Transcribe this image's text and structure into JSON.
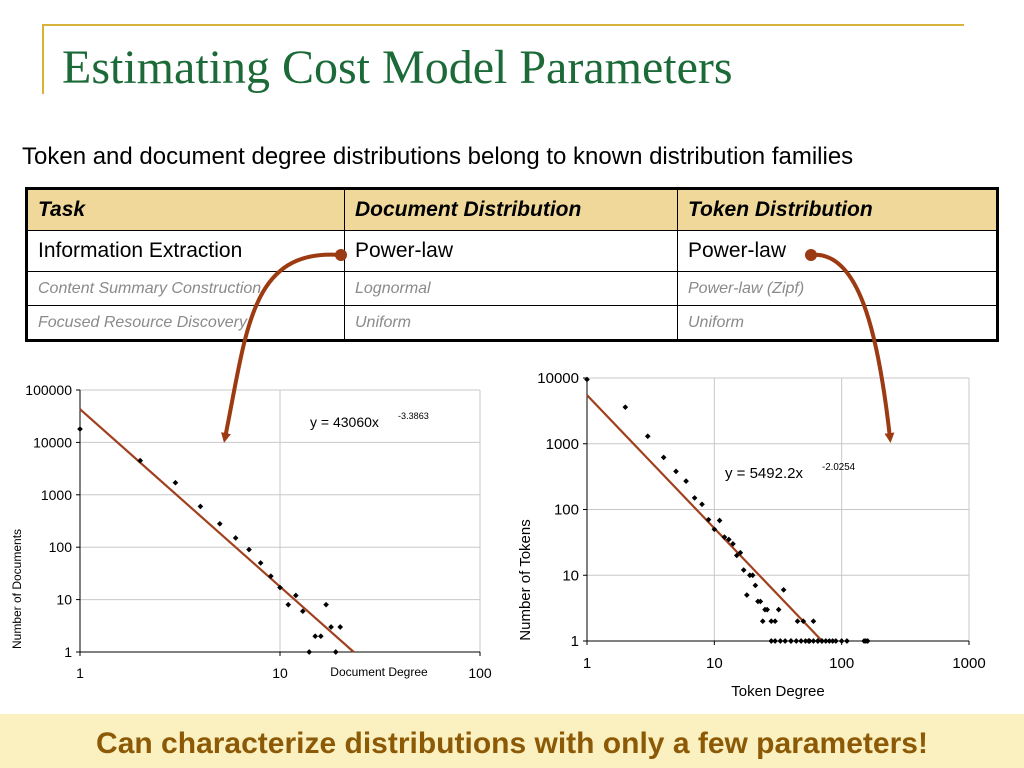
{
  "title": "Estimating Cost Model Parameters",
  "subtitle": "Token and document degree distributions belong to known distribution families",
  "table": {
    "headers": [
      "Task",
      "Document Distribution",
      "Token Distribution"
    ],
    "rows": [
      [
        "Information Extraction",
        "Power-law",
        "Power-law"
      ],
      [
        "Content Summary Construction",
        "Lognormal",
        "Power-law (Zipf)"
      ],
      [
        "Focused Resource Discovery",
        "Uniform",
        "Uniform"
      ]
    ]
  },
  "footer": "Can characterize distributions with only a few parameters!",
  "colors": {
    "title": "#1b6a38",
    "accent_line": "#d9b23a",
    "header_fill": "#f0d89a",
    "trend_line": "#a0401e",
    "arrow": "#9c3a12",
    "banner_fill": "#faf0c0",
    "banner_text": "#8c5a06"
  },
  "chart_data": [
    {
      "type": "scatter",
      "xscale": "log",
      "yscale": "log",
      "xlabel": "Document Degree",
      "ylabel": "Number of Documents",
      "xlim": [
        1,
        100
      ],
      "ylim": [
        1,
        100000
      ],
      "xticks": [
        "1",
        "10",
        "100"
      ],
      "yticks": [
        "1",
        "10",
        "100",
        "1000",
        "10000",
        "100000"
      ],
      "equation_base": "y = 43060x",
      "equation_exp": "-3.3863",
      "trend": {
        "a": 43060,
        "b": -3.3863
      },
      "points": [
        [
          1,
          18000
        ],
        [
          2,
          4500
        ],
        [
          3,
          1700
        ],
        [
          4,
          600
        ],
        [
          5,
          280
        ],
        [
          6,
          150
        ],
        [
          7,
          90
        ],
        [
          8,
          50
        ],
        [
          9,
          28
        ],
        [
          10,
          17
        ],
        [
          11,
          8
        ],
        [
          12,
          12
        ],
        [
          13,
          6
        ],
        [
          14,
          1
        ],
        [
          15,
          2
        ],
        [
          16,
          2
        ],
        [
          17,
          8
        ],
        [
          18,
          3
        ],
        [
          19,
          1
        ],
        [
          20,
          3
        ]
      ]
    },
    {
      "type": "scatter",
      "xscale": "log",
      "yscale": "log",
      "xlabel": "Token Degree",
      "ylabel": "Number of Tokens",
      "xlim": [
        1,
        1000
      ],
      "ylim": [
        1,
        10000
      ],
      "xticks": [
        "1",
        "10",
        "100",
        "1000"
      ],
      "yticks": [
        "1",
        "10",
        "100",
        "1000",
        "10000"
      ],
      "equation_base": "y = 5492.2x",
      "equation_exp": "-2.0254",
      "trend": {
        "a": 5492.2,
        "b": -2.0254
      },
      "points": [
        [
          1,
          9500
        ],
        [
          2,
          3600
        ],
        [
          3,
          1300
        ],
        [
          4,
          620
        ],
        [
          5,
          380
        ],
        [
          6,
          270
        ],
        [
          7,
          150
        ],
        [
          8,
          120
        ],
        [
          9,
          70
        ],
        [
          10,
          50
        ],
        [
          11,
          68
        ],
        [
          12,
          38
        ],
        [
          13,
          35
        ],
        [
          14,
          30
        ],
        [
          15,
          20
        ],
        [
          16,
          22
        ],
        [
          17,
          12
        ],
        [
          18,
          5
        ],
        [
          19,
          10
        ],
        [
          20,
          10
        ],
        [
          21,
          7
        ],
        [
          22,
          4
        ],
        [
          23,
          4
        ],
        [
          24,
          2
        ],
        [
          25,
          3
        ],
        [
          26,
          3
        ],
        [
          28,
          2
        ],
        [
          30,
          2
        ],
        [
          32,
          3
        ],
        [
          35,
          6
        ],
        [
          40,
          1
        ],
        [
          45,
          2
        ],
        [
          50,
          2
        ],
        [
          55,
          1
        ],
        [
          60,
          2
        ],
        [
          65,
          1
        ],
        [
          70,
          1
        ],
        [
          28,
          1
        ],
        [
          30,
          1
        ],
        [
          33,
          1
        ],
        [
          36,
          1
        ],
        [
          40,
          1
        ],
        [
          44,
          1
        ],
        [
          48,
          1
        ],
        [
          52,
          1
        ],
        [
          56,
          1
        ],
        [
          60,
          1
        ],
        [
          65,
          1
        ],
        [
          70,
          1
        ],
        [
          75,
          1
        ],
        [
          80,
          1
        ],
        [
          85,
          1
        ],
        [
          90,
          1
        ],
        [
          100,
          1
        ],
        [
          110,
          1
        ],
        [
          150,
          1
        ],
        [
          155,
          1
        ],
        [
          160,
          1
        ]
      ]
    }
  ]
}
